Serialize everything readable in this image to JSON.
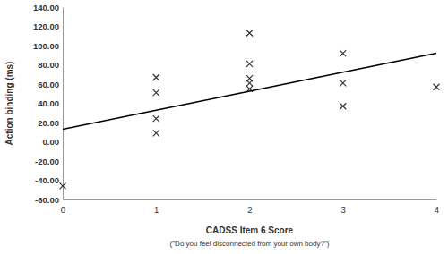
{
  "chart_data": {
    "type": "scatter",
    "x_label": "CADSS Item 6 Score",
    "y_label": "Action binding (ms)",
    "annotations": [
      "(\"Do you feel disconnected from your own body?\")"
    ],
    "xlim": [
      0,
      4
    ],
    "xticks": [
      0,
      1,
      2,
      3,
      4
    ],
    "ylim": [
      -60,
      140
    ],
    "yticks": [
      {
        "value": -60,
        "label": "-60.00"
      },
      {
        "value": -40,
        "label": "-40.00"
      },
      {
        "value": -20,
        "label": "-20.00"
      },
      {
        "value": 0,
        "label": "0.00"
      },
      {
        "value": 20,
        "label": "20.00"
      },
      {
        "value": 40,
        "label": "40.00"
      },
      {
        "value": 60,
        "label": "60.00"
      },
      {
        "value": 80,
        "label": "80.00"
      },
      {
        "value": 100,
        "label": "100.00"
      },
      {
        "value": 120,
        "label": "120.00"
      },
      {
        "value": 140,
        "label": "140.00"
      }
    ],
    "grid": false,
    "series": [
      {
        "type": "scatter",
        "marker": "x",
        "color": "#333333",
        "x": [
          0,
          1,
          1,
          1,
          1,
          2,
          2,
          2,
          2,
          2,
          3,
          3,
          3,
          4
        ],
        "values": [
          -46,
          67,
          51,
          24,
          9,
          113,
          81,
          66,
          61,
          55,
          92,
          61,
          37,
          57
        ]
      },
      {
        "type": "line",
        "line_style": "solid",
        "color": "#000000",
        "x": [
          0,
          4
        ],
        "values": [
          13,
          92
        ]
      }
    ]
  }
}
